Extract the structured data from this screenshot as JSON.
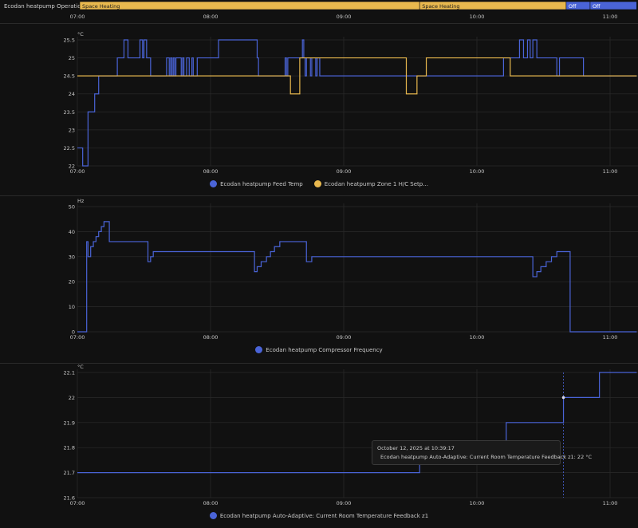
{
  "colors": {
    "blue": "#4a64d8",
    "yellow": "#e8b84e",
    "grid": "#2a2a2a",
    "text": "#c8c8c8"
  },
  "timeline": {
    "label": "Ecodan heatpump Operation Mo...",
    "segments": [
      {
        "label": "Space Heating",
        "start": 0.0,
        "end": 2.57,
        "state": "heating"
      },
      {
        "label": "Space Heating",
        "start": 2.57,
        "end": 3.67,
        "state": "heating"
      },
      {
        "label": "Off",
        "start": 3.67,
        "end": 3.85,
        "state": "off"
      },
      {
        "label": "Off",
        "start": 3.85,
        "end": 4.2,
        "state": "off"
      }
    ]
  },
  "time_ticks": [
    "07:00",
    "08:00",
    "09:00",
    "10:00",
    "11:00"
  ],
  "chart_data": [
    {
      "type": "line",
      "unit": "°C",
      "ylim": [
        22,
        25.5
      ],
      "yticks": [
        "22",
        "22.5",
        "23",
        "23.5",
        "24",
        "24.5",
        "25",
        "25.5"
      ],
      "xlim": [
        0,
        4.2
      ],
      "series": [
        {
          "name": "Ecodan heatpump Feed Temp",
          "legend": "Ecodan heatpump Feed Temp",
          "color": "#4a64d8",
          "x": [
            0,
            0.04,
            0.08,
            0.1,
            0.13,
            0.16,
            0.19,
            0.3,
            0.35,
            0.38,
            0.45,
            0.47,
            0.49,
            0.5,
            0.52,
            0.55,
            0.57,
            0.65,
            0.67,
            0.69,
            0.7,
            0.71,
            0.72,
            0.73,
            0.74,
            0.78,
            0.79,
            0.8,
            0.82,
            0.84,
            0.86,
            0.87,
            0.9,
            0.95,
            1.05,
            1.06,
            1.35,
            1.36,
            1.55,
            1.56,
            1.57,
            1.58,
            1.68,
            1.69,
            1.7,
            1.71,
            1.72,
            1.75,
            1.76,
            1.79,
            1.8,
            1.82,
            1.83,
            3.08,
            3.2,
            3.32,
            3.35,
            3.38,
            3.4,
            3.42,
            3.45,
            3.6,
            3.62,
            3.78,
            3.8,
            3.9,
            4.2
          ],
          "y": [
            22.5,
            22,
            23.5,
            23.5,
            24,
            24.5,
            24.5,
            25,
            25.5,
            25,
            25,
            25.5,
            25,
            25.5,
            25,
            24.5,
            24.5,
            24.5,
            25,
            24.5,
            25,
            24.5,
            25,
            24.5,
            25,
            24.5,
            25,
            24.5,
            25,
            24.5,
            25,
            24.5,
            25,
            25,
            25,
            25.5,
            25,
            24.5,
            24.5,
            25,
            24.5,
            25,
            25,
            25.5,
            25,
            24.5,
            25,
            24.5,
            25,
            24.5,
            25,
            24.5,
            24.5,
            24.5,
            25,
            25.5,
            25,
            25.5,
            25,
            25.5,
            25,
            24.5,
            25,
            25,
            24.5,
            24.5,
            24.5
          ]
        },
        {
          "name": "Ecodan heatpump Zone 1 H/C Setpoint",
          "legend": "Ecodan heatpump Zone 1 H/C Setp...",
          "color": "#e8b84e",
          "x": [
            0,
            1.6,
            1.67,
            1.8,
            2.47,
            2.55,
            2.62,
            3.25,
            4.2
          ],
          "y": [
            24.5,
            24,
            25,
            25,
            24,
            24.5,
            25,
            24.5,
            24.5
          ]
        }
      ]
    },
    {
      "type": "line",
      "unit": "Hz",
      "ylim": [
        0,
        50
      ],
      "yticks": [
        "0",
        "10",
        "20",
        "30",
        "40",
        "50"
      ],
      "xlim": [
        0,
        4.2
      ],
      "series": [
        {
          "name": "Ecodan heatpump Compressor Frequency",
          "legend": "Ecodan heatpump Compressor Frequency",
          "color": "#4a64d8",
          "x": [
            0,
            0.07,
            0.08,
            0.1,
            0.12,
            0.14,
            0.16,
            0.18,
            0.2,
            0.22,
            0.24,
            0.27,
            0.35,
            0.53,
            0.55,
            0.57,
            0.59,
            1.33,
            1.35,
            1.38,
            1.42,
            1.45,
            1.48,
            1.52,
            1.56,
            1.72,
            1.76,
            1.78,
            2.2,
            3.42,
            3.45,
            3.48,
            3.52,
            3.56,
            3.6,
            3.65,
            3.7,
            3.72,
            4.2
          ],
          "y": [
            0,
            36,
            30,
            34,
            36,
            38,
            40,
            42,
            44,
            44,
            36,
            36,
            36,
            28,
            30,
            32,
            32,
            24,
            26,
            28,
            30,
            32,
            34,
            36,
            36,
            28,
            30,
            30,
            30,
            22,
            24,
            26,
            28,
            30,
            32,
            32,
            0,
            0,
            0
          ]
        }
      ]
    },
    {
      "type": "line",
      "unit": "°C",
      "ylim": [
        21.6,
        22.1
      ],
      "yticks": [
        "21.6",
        "21.7",
        "21.8",
        "21.9",
        "22",
        "22.1"
      ],
      "xlim": [
        0,
        4.2
      ],
      "series": [
        {
          "name": "Ecodan heatpump Auto-Adaptive: Current Room Temperature Feedback z1",
          "legend": "Ecodan heatpump Auto-Adaptive: Current Room Temperature Feedback z1",
          "color": "#4a64d8",
          "x": [
            0,
            2.57,
            3.22,
            3.65,
            3.92,
            4.2
          ],
          "y": [
            21.7,
            21.8,
            21.9,
            22,
            22.1,
            22.1
          ]
        }
      ],
      "hover_x": 3.65,
      "hover_y": 22,
      "tooltip": {
        "time": "October 12, 2025 at 10:39:17",
        "entry": "Ecodan heatpump Auto-Adaptive: Current Room Temperature Feedback z1: 22 °C"
      }
    }
  ]
}
